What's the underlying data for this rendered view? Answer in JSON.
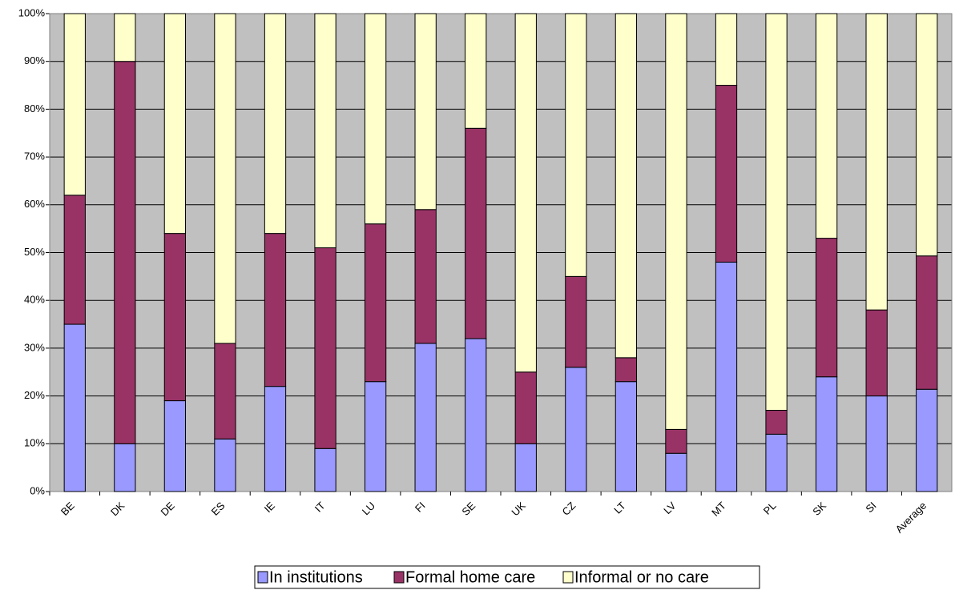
{
  "chart_data": {
    "type": "stacked_bar",
    "categories": [
      "BE",
      "DK",
      "DE",
      "ES",
      "IE",
      "IT",
      "LU",
      "FI",
      "SE",
      "UK",
      "CZ",
      "LT",
      "LV",
      "MT",
      "PL",
      "SK",
      "SI",
      "Average"
    ],
    "series": [
      {
        "name": "In institutions",
        "color": "#9999ff",
        "values": [
          35,
          10,
          19,
          11,
          22,
          9,
          23,
          31,
          32,
          10,
          26,
          23,
          8,
          48,
          12,
          24,
          20,
          21.4
        ]
      },
      {
        "name": "Formal home care",
        "color": "#993366",
        "values": [
          27,
          80,
          35,
          20,
          32,
          42,
          33,
          28,
          44,
          15,
          19,
          5,
          5,
          37,
          5,
          29,
          18,
          27.9
        ]
      },
      {
        "name": "Informal or no care",
        "color": "#ffffcc",
        "values": [
          38,
          10,
          46,
          69,
          46,
          49,
          44,
          41,
          24,
          75,
          55,
          72,
          87,
          15,
          83,
          47,
          62,
          50.7
        ]
      }
    ],
    "ylim": [
      0,
      100
    ],
    "yticks": [
      {
        "value": 0,
        "label": "0%"
      },
      {
        "value": 10,
        "label": "10%"
      },
      {
        "value": 20,
        "label": "20%"
      },
      {
        "value": 30,
        "label": "30%"
      },
      {
        "value": 40,
        "label": "40%"
      },
      {
        "value": 50,
        "label": "50%"
      },
      {
        "value": 60,
        "label": "60%"
      },
      {
        "value": 70,
        "label": "70%"
      },
      {
        "value": 80,
        "label": "80%"
      },
      {
        "value": 90,
        "label": "90%"
      },
      {
        "value": 100,
        "label": "100%"
      }
    ],
    "grid": true,
    "legend": "bottom"
  }
}
